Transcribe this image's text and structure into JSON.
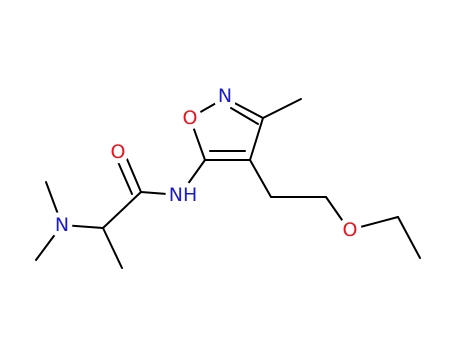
{
  "atoms": {
    "ring_o": "O",
    "ring_n": "N",
    "amide_nh": "NH",
    "carbonyl_o": "O",
    "amine_n": "N",
    "ether_o": "O"
  }
}
